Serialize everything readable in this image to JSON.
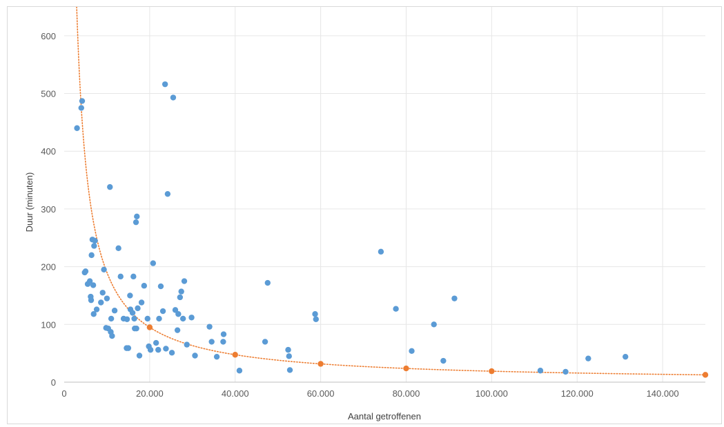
{
  "chart_data": {
    "type": "scatter",
    "title": "",
    "xlabel": "Aantal getroffenen",
    "ylabel": "Duur (minuten)",
    "xlim": [
      0,
      150000
    ],
    "ylim": [
      0,
      650
    ],
    "x_ticks": [
      0,
      20000,
      40000,
      60000,
      80000,
      100000,
      120000,
      140000
    ],
    "x_tick_labels": [
      "0",
      "20.000",
      "40.000",
      "60.000",
      "80.000",
      "100.000",
      "120.000",
      "140.000"
    ],
    "y_ticks": [
      0,
      100,
      200,
      300,
      400,
      500,
      600
    ],
    "y_tick_labels": [
      "0",
      "100",
      "200",
      "300",
      "400",
      "500",
      "600"
    ],
    "grid": true,
    "legend": "none",
    "colors": {
      "observations": "#5b9bd5",
      "model": "#ed7d31",
      "grid": "#e6e6e6",
      "axis": "#bfbfbf"
    },
    "series": [
      {
        "kind": "points",
        "points": [
          [
            3000,
            440
          ],
          [
            4000,
            475
          ],
          [
            4200,
            487
          ],
          [
            4800,
            190
          ],
          [
            5000,
            192
          ],
          [
            5500,
            170
          ],
          [
            6000,
            175
          ],
          [
            6200,
            148
          ],
          [
            6300,
            142
          ],
          [
            6400,
            220
          ],
          [
            6600,
            247
          ],
          [
            6800,
            168
          ],
          [
            6900,
            118
          ],
          [
            7000,
            236
          ],
          [
            7200,
            245
          ],
          [
            7600,
            126
          ],
          [
            8600,
            138
          ],
          [
            9300,
            195
          ],
          [
            9000,
            155
          ],
          [
            9800,
            94
          ],
          [
            10000,
            145
          ],
          [
            10300,
            93
          ],
          [
            10700,
            338
          ],
          [
            10900,
            87
          ],
          [
            11000,
            110
          ],
          [
            11200,
            80
          ],
          [
            11800,
            124
          ],
          [
            12700,
            232
          ],
          [
            13200,
            183
          ],
          [
            13900,
            110
          ],
          [
            14600,
            59
          ],
          [
            14700,
            109
          ],
          [
            15000,
            59
          ],
          [
            15400,
            150
          ],
          [
            15500,
            126
          ],
          [
            16000,
            120
          ],
          [
            16200,
            183
          ],
          [
            16400,
            110
          ],
          [
            16500,
            93
          ],
          [
            16800,
            277
          ],
          [
            17000,
            287
          ],
          [
            16900,
            93
          ],
          [
            17200,
            128
          ],
          [
            17600,
            46
          ],
          [
            18100,
            138
          ],
          [
            18700,
            167
          ],
          [
            19500,
            110
          ],
          [
            19800,
            62
          ],
          [
            20200,
            56
          ],
          [
            20800,
            206
          ],
          [
            21500,
            68
          ],
          [
            22000,
            56
          ],
          [
            22200,
            110
          ],
          [
            22600,
            166
          ],
          [
            23100,
            123
          ],
          [
            23600,
            516
          ],
          [
            23800,
            58
          ],
          [
            24200,
            326
          ],
          [
            25200,
            51
          ],
          [
            25500,
            493
          ],
          [
            26000,
            125
          ],
          [
            26500,
            90
          ],
          [
            26700,
            118
          ],
          [
            27100,
            147
          ],
          [
            27400,
            157
          ],
          [
            27800,
            110
          ],
          [
            28100,
            175
          ],
          [
            28700,
            65
          ],
          [
            29800,
            112
          ],
          [
            30600,
            46
          ],
          [
            34000,
            96
          ],
          [
            34500,
            70
          ],
          [
            35700,
            44
          ],
          [
            37200,
            70
          ],
          [
            37300,
            83
          ],
          [
            41000,
            20
          ],
          [
            47000,
            70
          ],
          [
            47600,
            172
          ],
          [
            52400,
            56
          ],
          [
            52600,
            45
          ],
          [
            52800,
            21
          ],
          [
            58700,
            118
          ],
          [
            58900,
            109
          ],
          [
            74100,
            226
          ],
          [
            77600,
            127
          ],
          [
            81300,
            54
          ],
          [
            86500,
            100
          ],
          [
            88700,
            37
          ],
          [
            91300,
            145
          ],
          [
            111400,
            20
          ],
          [
            117300,
            18
          ],
          [
            122600,
            41
          ],
          [
            131300,
            44
          ]
        ]
      },
      {
        "kind": "model",
        "points": [
          [
            20000,
            95
          ],
          [
            40000,
            47.5
          ],
          [
            60000,
            31.7
          ],
          [
            80000,
            23.8
          ],
          [
            100000,
            19
          ],
          [
            150000,
            12.7
          ]
        ],
        "curve": {
          "form": "y = a / x",
          "a": 1900000,
          "x_from": 2900,
          "x_to": 150000
        }
      }
    ]
  }
}
